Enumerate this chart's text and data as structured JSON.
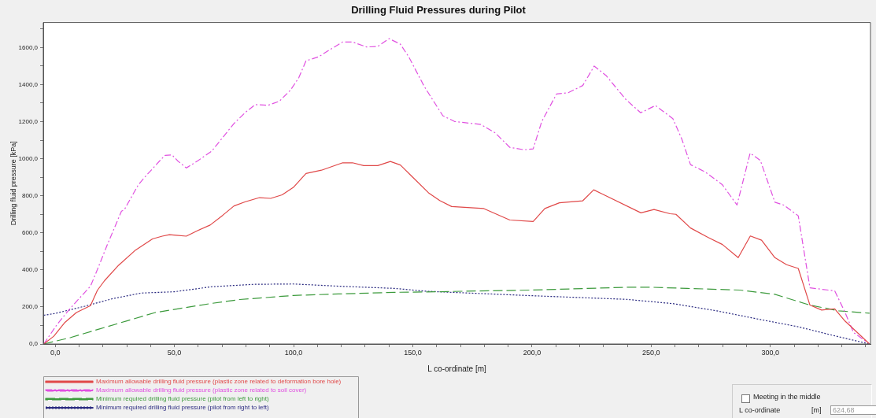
{
  "chart_data": {
    "type": "line",
    "title": "Drilling Fluid Pressures during Pilot",
    "xlabel": "L co-ordinate [m]",
    "ylabel": "Drilling fluid pressure [kPa]",
    "xlim": [
      -5,
      342
    ],
    "ylim": [
      0,
      1735
    ],
    "xticks": [
      {
        "value": 0,
        "label": "0,0"
      },
      {
        "value": 10,
        "label": null
      },
      {
        "value": 20,
        "label": null
      },
      {
        "value": 30,
        "label": null
      },
      {
        "value": 40,
        "label": null
      },
      {
        "value": 50,
        "label": "50,0"
      },
      {
        "value": 60,
        "label": null
      },
      {
        "value": 70,
        "label": null
      },
      {
        "value": 80,
        "label": null
      },
      {
        "value": 90,
        "label": null
      },
      {
        "value": 100,
        "label": "100,0"
      },
      {
        "value": 110,
        "label": null
      },
      {
        "value": 120,
        "label": null
      },
      {
        "value": 130,
        "label": null
      },
      {
        "value": 140,
        "label": null
      },
      {
        "value": 150,
        "label": "150,0"
      },
      {
        "value": 160,
        "label": null
      },
      {
        "value": 170,
        "label": null
      },
      {
        "value": 180,
        "label": null
      },
      {
        "value": 190,
        "label": null
      },
      {
        "value": 200,
        "label": "200,0"
      },
      {
        "value": 210,
        "label": null
      },
      {
        "value": 220,
        "label": null
      },
      {
        "value": 230,
        "label": null
      },
      {
        "value": 240,
        "label": null
      },
      {
        "value": 250,
        "label": "250,0"
      },
      {
        "value": 260,
        "label": null
      },
      {
        "value": 270,
        "label": null
      },
      {
        "value": 280,
        "label": null
      },
      {
        "value": 290,
        "label": null
      },
      {
        "value": 300,
        "label": "300,0"
      },
      {
        "value": 310,
        "label": null
      },
      {
        "value": 320,
        "label": null
      },
      {
        "value": 330,
        "label": null
      },
      {
        "value": 340,
        "label": null
      }
    ],
    "yticks": [
      {
        "value": 0,
        "label": "0,0"
      },
      {
        "value": 100,
        "label": null
      },
      {
        "value": 200,
        "label": "200,0"
      },
      {
        "value": 300,
        "label": null
      },
      {
        "value": 400,
        "label": "400,0"
      },
      {
        "value": 500,
        "label": null
      },
      {
        "value": 600,
        "label": "600,0"
      },
      {
        "value": 700,
        "label": null
      },
      {
        "value": 800,
        "label": "800,0"
      },
      {
        "value": 900,
        "label": null
      },
      {
        "value": 1000,
        "label": "1000,0"
      },
      {
        "value": 1100,
        "label": null
      },
      {
        "value": 1200,
        "label": "1200,0"
      },
      {
        "value": 1300,
        "label": null
      },
      {
        "value": 1400,
        "label": "1400,0"
      },
      {
        "value": 1500,
        "label": null
      },
      {
        "value": 1600,
        "label": "1600,0"
      },
      {
        "value": 1700,
        "label": null
      }
    ],
    "grid": false,
    "legend": "bottom left",
    "marker": "none",
    "series": [
      {
        "name": "Maximum allowable drilling fluid pressure (plastic zone related to deformation bore hole)",
        "color": "#e04848",
        "line_style": "solid",
        "x": [
          -4.8,
          -0.6,
          4.1,
          8.9,
          14.8,
          17.7,
          20.7,
          26.6,
          33.7,
          40.8,
          44.9,
          47.9,
          50.8,
          55,
          59.7,
          65,
          70.3,
          75,
          79.8,
          85.7,
          90.4,
          95.2,
          99.9,
          105.2,
          111.7,
          120.6,
          124.7,
          129.4,
          135.3,
          140.6,
          144.8,
          149.5,
          156.6,
          161.3,
          166.3,
          179.8,
          190.7,
          200.5,
          205.4,
          211.5,
          221.3,
          225.9,
          245.7,
          251.2,
          257.9,
          260.4,
          266.5,
          273.8,
          279.9,
          286.5,
          291.6,
          296.3,
          301.9,
          306.8,
          311.7,
          316.6,
          321.5,
          327,
          331.3,
          341.6
        ],
        "values": [
          0,
          42,
          117,
          170,
          207,
          290,
          342,
          425,
          507,
          567,
          582,
          590,
          587,
          582,
          612,
          642,
          695,
          745,
          768,
          790,
          786,
          805,
          845,
          920,
          938,
          978,
          978,
          963,
          963,
          985,
          966,
          906,
          816,
          774,
          742,
          731,
          669,
          661,
          731,
          762,
          773,
          832,
          708,
          726,
          703,
          700,
          626,
          576,
          537,
          466,
          583,
          560,
          466,
          428,
          408,
          210,
          183,
          190,
          124,
          0
        ]
      },
      {
        "name": "Maximum allowable drilling fluid pressure (plastic zone related to soil cover)",
        "color": "#e050e0",
        "line_style": "dashdot",
        "x": [
          -4.8,
          0.6,
          5.3,
          10,
          14.8,
          17.7,
          21.9,
          27.8,
          29,
          34.9,
          38.4,
          44.3,
          46.1,
          49,
          51.4,
          55,
          59.7,
          65.6,
          70.3,
          75,
          79.8,
          83.9,
          89.2,
          94,
          98.7,
          102.2,
          105.2,
          110.5,
          115.2,
          120.6,
          124.7,
          130.6,
          135.3,
          140.1,
          144.8,
          148.3,
          154.8,
          162.6,
          167.5,
          178.5,
          184.6,
          190.7,
          196.8,
          200.5,
          204.1,
          210.3,
          215.2,
          221.3,
          226.1,
          231,
          239.5,
          245.6,
          251.8,
          259.1,
          262.8,
          266.5,
          272.6,
          279.9,
          286,
          291.5,
          295.8,
          301.9,
          305.6,
          311.7,
          316.6,
          327,
          331.3,
          334.9,
          341.6
        ],
        "values": [
          0,
          102,
          177,
          245,
          312,
          402,
          537,
          717,
          725,
          860,
          912,
          995,
          1018,
          1021,
          988,
          950,
          988,
          1040,
          1115,
          1190,
          1250,
          1292,
          1288,
          1310,
          1370,
          1438,
          1528,
          1550,
          1588,
          1630,
          1630,
          1603,
          1606,
          1648,
          1618,
          1550,
          1390,
          1232,
          1201,
          1185,
          1139,
          1061,
          1048,
          1053,
          1201,
          1349,
          1356,
          1395,
          1500,
          1450,
          1318,
          1248,
          1287,
          1216,
          1108,
          968,
          929,
          859,
          750,
          1030,
          991,
          765,
          750,
          692,
          303,
          287,
          171,
          62,
          0
        ]
      },
      {
        "name": "Minimum required drilling fluid pressure (pilot from left to right)",
        "color": "#3c9a3c",
        "line_style": "dashed",
        "x": [
          -4.8,
          6.5,
          18.3,
          30.1,
          42,
          53.8,
          65.6,
          77.4,
          99.9,
          118.8,
          142.5,
          155.3,
          199.2,
          239.6,
          250.6,
          265.2,
          287.3,
          301.9,
          316.6,
          328.7,
          341.6
        ],
        "values": [
          0,
          35,
          80,
          125,
          170,
          195,
          219,
          240,
          262,
          270,
          279,
          281,
          291,
          306,
          306,
          300,
          291,
          268,
          210,
          179,
          166
        ]
      },
      {
        "name": "Minimum required drilling fluid pressure (pilot from right to left)",
        "color": "#2a2a80",
        "line_style": "dotted",
        "x": [
          -4.8,
          0,
          12.4,
          24.2,
          36.1,
          50,
          65.6,
          83.3,
          99.9,
          118.8,
          142.5,
          155.3,
          199.2,
          239.6,
          259.1,
          277.5,
          295.8,
          311.7,
          326.4,
          341.6
        ],
        "values": [
          155,
          165,
          204,
          245,
          275,
          282,
          309,
          322,
          324,
          312,
          300,
          285,
          261,
          241,
          218,
          179,
          132,
          93,
          46,
          0
        ]
      }
    ],
    "annotations": [
      "Meeting in the middle",
      "L co-ordinate",
      "[m]",
      "624,68"
    ]
  }
}
